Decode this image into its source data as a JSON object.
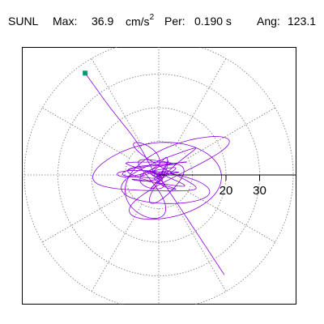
{
  "header": {
    "station": "SUNL",
    "max_label": "Max:",
    "max_value": "36.9",
    "max_unit_base": "cm/s",
    "max_unit_exp": "2",
    "per_label": "Per:",
    "per_value": "0.190 s",
    "ang_label": "Ang:",
    "ang_value": "123.1"
  },
  "colors": {
    "trace": "#8b00e0",
    "marker": "#009b73",
    "grid": "#777777",
    "axis": "#000000"
  },
  "chart_data": {
    "type": "polar_particle_motion",
    "title": "SUNL",
    "max_amplitude": 36.9,
    "max_unit": "cm/s^2",
    "period_s": 0.19,
    "angle_deg": 123.1,
    "radial_rings": [
      10,
      20,
      30,
      40
    ],
    "radial_tick_labels": [
      "20",
      "30"
    ],
    "radial_tick_values": [
      20,
      30
    ],
    "spoke_angles_deg": [
      0,
      30,
      60,
      90,
      120,
      150,
      180,
      210,
      240,
      270,
      300,
      330
    ],
    "start_point": {
      "x": -21.9,
      "y": 30.3
    },
    "end_point": {
      "x": 19.5,
      "y": -29.7
    },
    "grid": "dotted polar",
    "series": [
      {
        "type": "trace_path",
        "description_visible": false
      }
    ]
  }
}
